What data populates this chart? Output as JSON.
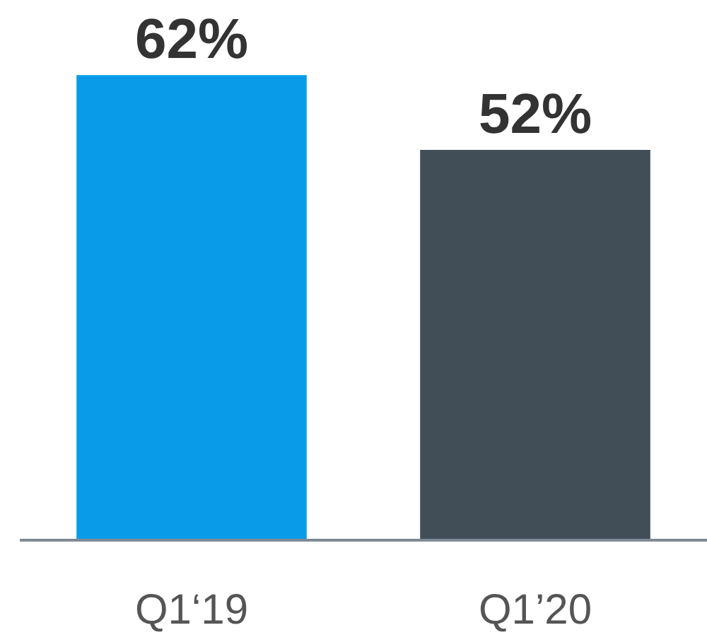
{
  "chart_data": {
    "type": "bar",
    "categories": [
      "Q1‘19",
      "Q1’20"
    ],
    "values": [
      62,
      52
    ],
    "colors": [
      "#0a9be8",
      "#424e57"
    ],
    "value_labels": [
      "62%",
      "52%"
    ]
  }
}
